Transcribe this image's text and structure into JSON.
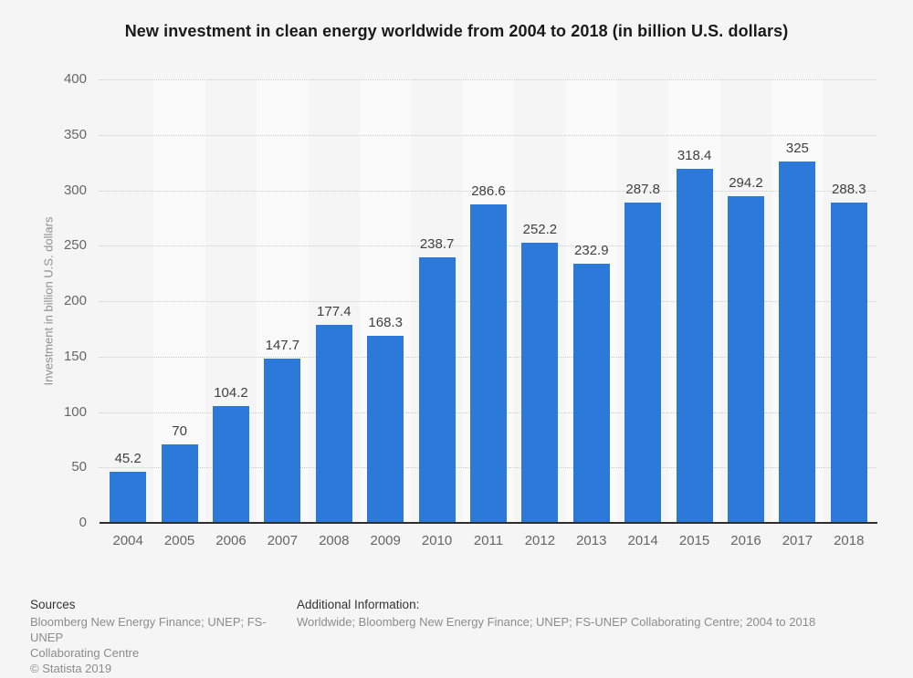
{
  "title": "New investment in clean energy worldwide from 2004 to 2018 (in billion U.S. dollars)",
  "chart_data": {
    "type": "bar",
    "categories": [
      "2004",
      "2005",
      "2006",
      "2007",
      "2008",
      "2009",
      "2010",
      "2011",
      "2012",
      "2013",
      "2014",
      "2015",
      "2016",
      "2017",
      "2018"
    ],
    "values": [
      45.2,
      70,
      104.2,
      147.7,
      177.4,
      168.3,
      238.7,
      286.6,
      252.2,
      232.9,
      287.8,
      318.4,
      294.2,
      325,
      288.3
    ],
    "value_labels": [
      "45.2",
      "70",
      "104.2",
      "147.7",
      "177.4",
      "168.3",
      "238.7",
      "286.6",
      "252.2",
      "232.9",
      "287.8",
      "318.4",
      "294.2",
      "325",
      "288.3"
    ],
    "title": "New investment in clean energy worldwide from 2004 to 2018 (in billion U.S. dollars)",
    "xlabel": "",
    "ylabel": "Investment in billion U.S. dollars",
    "ylim": [
      0,
      400
    ],
    "yticks": [
      0,
      50,
      100,
      150,
      200,
      250,
      300,
      350,
      400
    ],
    "grid": "horizontal-dotted",
    "legend": "none",
    "bar_color": "#2b7ad9",
    "stripe_color": "#fafafa"
  },
  "footer": {
    "sources_heading": "Sources",
    "sources_lines": [
      "Bloomberg New Energy Finance; UNEP; FS-UNEP",
      "Collaborating Centre",
      "© Statista 2019"
    ],
    "additional_heading": "Additional Information:",
    "additional_text": "Worldwide; Bloomberg New Energy Finance; UNEP; FS-UNEP Collaborating Centre; 2004 to 2018"
  },
  "colors": {
    "background": "#f5f5f5",
    "bar": "#2b7ad9",
    "grid": "#cccccc",
    "axis_line": "#2e2e2e",
    "tick_text": "#666666",
    "value_text": "#404040",
    "title_text": "#1a1a1a",
    "footer_gray": "#8c8c8c"
  }
}
